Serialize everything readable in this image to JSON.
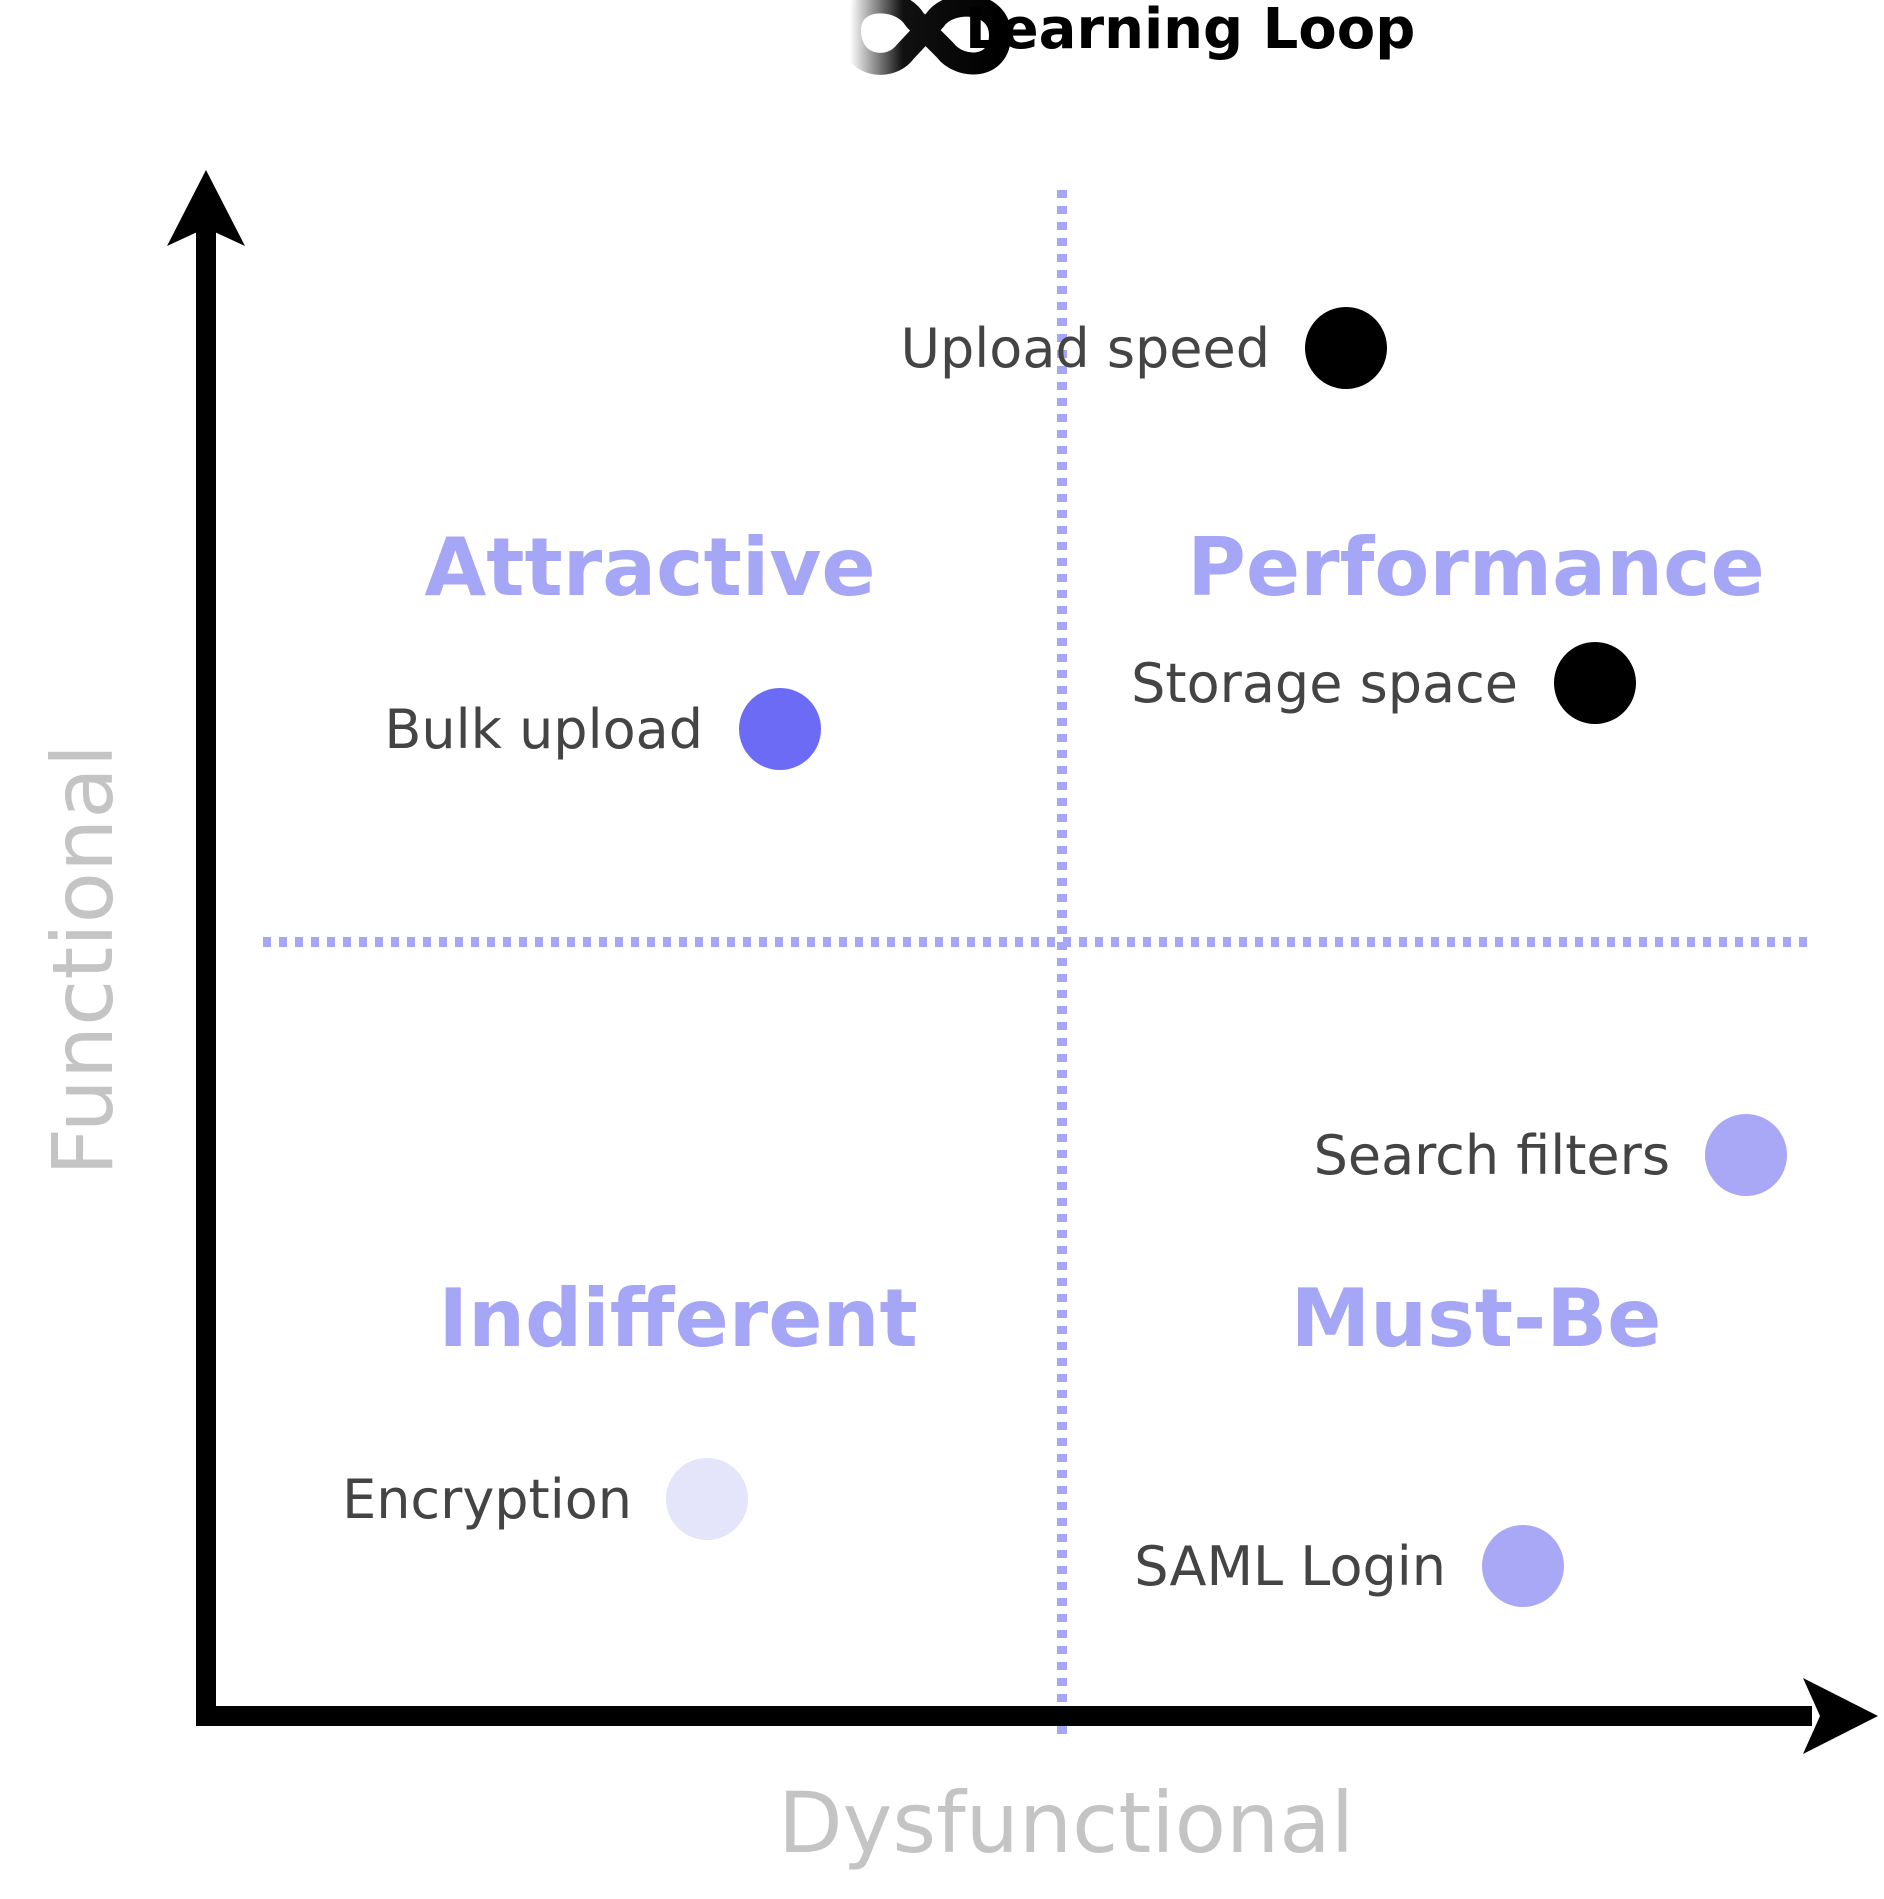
{
  "brand": {
    "name": "Learning Loop",
    "logo_icon": "infinity-loop-icon"
  },
  "axes": {
    "y_label": "Functional",
    "x_label": "Dysfunctional"
  },
  "quadrants": {
    "top_left": "Attractive",
    "top_right": "Performance",
    "bottom_left": "Indifferent",
    "bottom_right": "Must-Be"
  },
  "colors": {
    "axis": "#000000",
    "divider": "#a6a6f7",
    "quadrant_label": "#a6a6f7",
    "attractive": "#6b6bf5",
    "performance": "#000000",
    "must_be": "#a8a8f7",
    "indifferent": "#e4e4fa"
  },
  "features": [
    {
      "label": "Upload speed",
      "category": "performance",
      "color": "#000000"
    },
    {
      "label": "Storage space",
      "category": "performance",
      "color": "#000000"
    },
    {
      "label": "Bulk upload",
      "category": "attractive",
      "color": "#6b6bf5"
    },
    {
      "label": "Search filters",
      "category": "must-be",
      "color": "#a8a8f7"
    },
    {
      "label": "Encryption",
      "category": "indifferent",
      "color": "#e4e4fa"
    },
    {
      "label": "SAML Login",
      "category": "must-be",
      "color": "#a8a8f7"
    }
  ]
}
